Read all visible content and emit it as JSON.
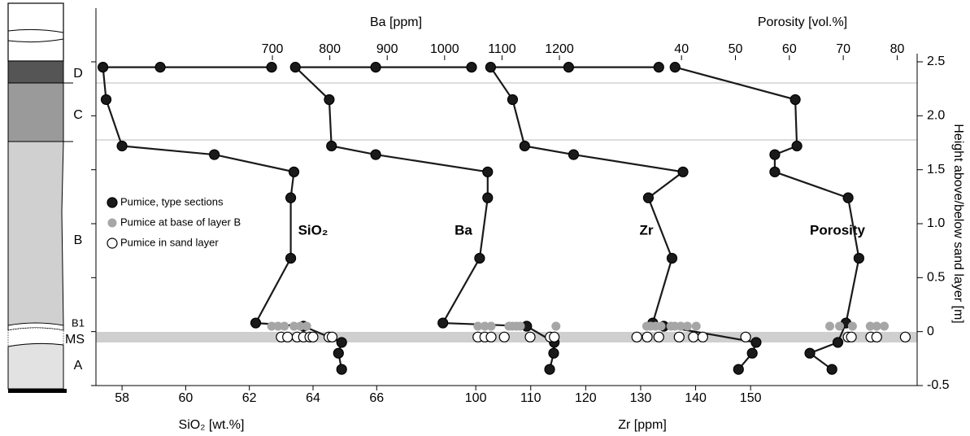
{
  "column": {
    "labels": [
      "D",
      "C",
      "B",
      "B1",
      "MS",
      "A"
    ]
  },
  "chart_data": {
    "type": "profile",
    "y_label": "Height above/below sand layer [m]",
    "ylim": [
      -0.5,
      2.5
    ],
    "yticks": [
      -0.5,
      0,
      0.5,
      {
        "value": 1,
        "label": "1.0"
      },
      1.5,
      {
        "value": 2,
        "label": "2.0"
      },
      2.5
    ],
    "legend_position": "left",
    "x_axes": [
      {
        "label": "SiO₂ [wt.%]",
        "curve_label": "SiO₂",
        "side": "bottom",
        "xlim": [
          57.18,
          82.98
        ],
        "xticks": [
          58,
          60,
          62,
          64,
          66
        ]
      },
      {
        "label": "Ba [ppm]",
        "curve_label": "Ba",
        "side": "top",
        "xlim": [
          392.6,
          1823.2
        ],
        "xticks": [
          700,
          800,
          900,
          1000,
          1100,
          1200
        ]
      },
      {
        "label": "Zr [ppm]",
        "curve_label": "Zr",
        "side": "bottom",
        "xlim": [
          30.9,
          180.3
        ],
        "xticks": [
          100,
          110,
          120,
          130,
          140,
          150
        ]
      },
      {
        "label": "Porosity [vol.%]",
        "curve_label": "Porosity",
        "side": "top",
        "xlim": [
          -68.6,
          83.7
        ],
        "xticks": [
          40,
          50,
          60,
          70,
          80
        ]
      }
    ],
    "series": [
      {
        "name": "Pumice, type sections",
        "color": "#1a1a1a",
        "lines": true,
        "curves": [
          {
            "axis": 0,
            "x": [
              62.7,
              59.2,
              57.4,
              57.5,
              58.0,
              60.9,
              63.4,
              63.3,
              63.3,
              62.2,
              63.7,
              64.9,
              64.8,
              64.9
            ],
            "y": [
              2.45,
              2.45,
              2.45,
              2.15,
              1.72,
              1.64,
              1.48,
              1.24,
              0.68,
              0.08,
              0.05,
              -0.1,
              -0.2,
              -0.35
            ]
          },
          {
            "axis": 1,
            "x": [
              1047,
              880,
              740,
              799,
              803,
              880,
              1075,
              1075,
              1061,
              997,
              1143,
              1191,
              1190,
              1183
            ],
            "y": [
              2.45,
              2.45,
              2.45,
              2.15,
              1.72,
              1.64,
              1.48,
              1.24,
              0.68,
              0.08,
              0.05,
              -0.1,
              -0.2,
              -0.35
            ]
          },
          {
            "axis": 2,
            "x": [
              133.3,
              116.9,
              102.7,
              106.7,
              108.9,
              117.8,
              137.7,
              131.4,
              135.7,
              132.2,
              134.2,
              151.0,
              150.3,
              147.8
            ],
            "y": [
              2.45,
              2.45,
              2.45,
              2.15,
              1.72,
              1.64,
              1.48,
              1.24,
              0.68,
              0.08,
              0.05,
              -0.1,
              -0.2,
              -0.35
            ]
          },
          {
            "axis": 3,
            "x": [
              38.8,
              61.1,
              61.4,
              57.3,
              57.3,
              70.9,
              72.9,
              70.5,
              69.0,
              63.8,
              67.9
            ],
            "y": [
              2.45,
              2.15,
              1.72,
              1.64,
              1.48,
              1.24,
              0.68,
              0.08,
              -0.1,
              -0.2,
              -0.35
            ]
          }
        ]
      },
      {
        "name": "Pumice at base of layer B",
        "color": "#a6a6a6",
        "lines": false,
        "curves": [
          {
            "axis": 0,
            "x": [
              62.7,
              62.9,
              63.1,
              63.4,
              63.6,
              63.8
            ],
            "y": [
              0.05,
              0.05,
              0.05,
              0.05,
              0.05,
              0.05
            ]
          },
          {
            "axis": 1,
            "x": [
              1058,
              1070,
              1081,
              1112,
              1118,
              1125,
              1132,
              1194
            ],
            "y": [
              0.05,
              0.05,
              0.05,
              0.05,
              0.05,
              0.05,
              0.05,
              0.05
            ]
          },
          {
            "axis": 2,
            "x": [
              131.1,
              131.8,
              132.7,
              133.7,
              135.5,
              136.2,
              137.3,
              138.5,
              140.1
            ],
            "y": [
              0.05,
              0.05,
              0.05,
              0.05,
              0.05,
              0.05,
              0.05,
              0.05,
              0.05
            ]
          },
          {
            "axis": 3,
            "x": [
              67.5,
              69.3,
              71.7,
              75.0,
              76.2,
              77.6
            ],
            "y": [
              0.05,
              0.05,
              0.05,
              0.05,
              0.05,
              0.05
            ]
          }
        ]
      },
      {
        "name": "Pumice in sand layer",
        "color": "#ffffff",
        "lines": false,
        "curves": [
          {
            "axis": 0,
            "x": [
              63.0,
              63.2,
              63.5,
              63.7,
              63.9,
              64.0,
              64.5,
              64.6
            ],
            "y": [
              -0.05,
              -0.05,
              -0.05,
              -0.05,
              -0.05,
              -0.05,
              -0.05,
              -0.05
            ]
          },
          {
            "axis": 1,
            "x": [
              1058,
              1070,
              1081,
              1104,
              1149,
              1184,
              1191
            ],
            "y": [
              -0.05,
              -0.05,
              -0.05,
              -0.05,
              -0.05,
              -0.05,
              -0.05
            ]
          },
          {
            "axis": 2,
            "x": [
              129.3,
              131.2,
              133.3,
              137.0,
              139.6,
              141.3,
              149.1
            ],
            "y": [
              -0.05,
              -0.05,
              -0.05,
              -0.05,
              -0.05,
              -0.05,
              -0.05
            ]
          },
          {
            "axis": 3,
            "x": [
              70.9,
              71.5,
              75.1,
              76.2,
              81.5
            ],
            "y": [
              -0.05,
              -0.05,
              -0.05,
              -0.05,
              -0.05
            ]
          }
        ]
      }
    ]
  }
}
